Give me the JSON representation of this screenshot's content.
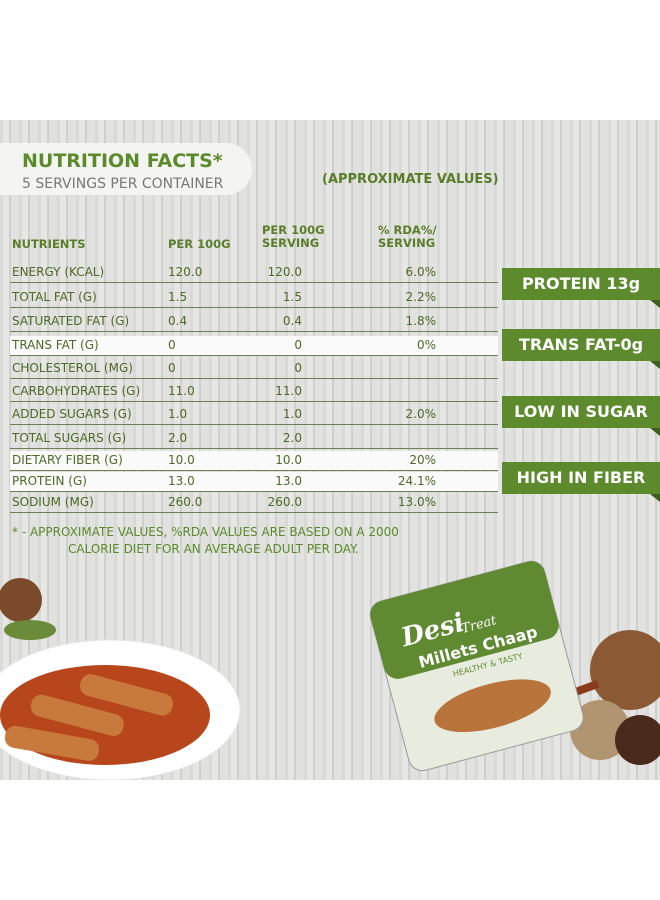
{
  "header": {
    "title": "NUTRITION FACTS*",
    "subtitle": "5 SERVINGS PER CONTAINER",
    "note": "(APPROXIMATE VALUES)"
  },
  "table": {
    "columns": [
      "NUTRIENTS",
      "PER 100G",
      "PER 100G SERVING",
      "% RDA%/ SERVING"
    ],
    "rows": [
      [
        "ENERGY (KCAL)",
        "120.0",
        "120.0",
        "6.0%"
      ],
      [
        "TOTAL FAT (G)",
        "1.5",
        "1.5",
        "2.2%"
      ],
      [
        "SATURATED FAT (G)",
        "0.4",
        "0.4",
        "1.8%"
      ],
      [
        "TRANS FAT (G)",
        "0",
        "0",
        "0%"
      ],
      [
        "CHOLESTEROL (MG)",
        "0",
        "0"
      ],
      [
        "CARBOHYDRATES (G)",
        "11.0",
        "11.0"
      ],
      [
        "ADDED SUGARS (G)",
        "1.0",
        "1.0",
        "2.0%"
      ],
      [
        "TOTAL SUGARS (G)",
        "2.0",
        "2.0"
      ],
      [
        "DIETARY FIBER (G)",
        "10.0",
        "10.0",
        "20%"
      ],
      [
        "PROTEIN (G)",
        "13.0",
        "13.0",
        "24.1%"
      ],
      [
        "SODIUM (MG)",
        "260.0",
        "260.0",
        "13.0%"
      ]
    ]
  },
  "badges": [
    "PROTEIN 13g",
    "TRANS FAT-0g",
    "LOW IN SUGAR",
    "HIGH IN FIBER"
  ],
  "footnote": [
    "* - APPROXIMATE VALUES, %RDA VALUES ARE BASED ON A 2000",
    "CALORIE DIET FOR AN AVERAGE ADULT PER DAY."
  ],
  "product": {
    "brand": "Desi",
    "brand2": "Treat",
    "name": "Millets Chaap",
    "tagline": "HEALTHY & TASTY"
  }
}
